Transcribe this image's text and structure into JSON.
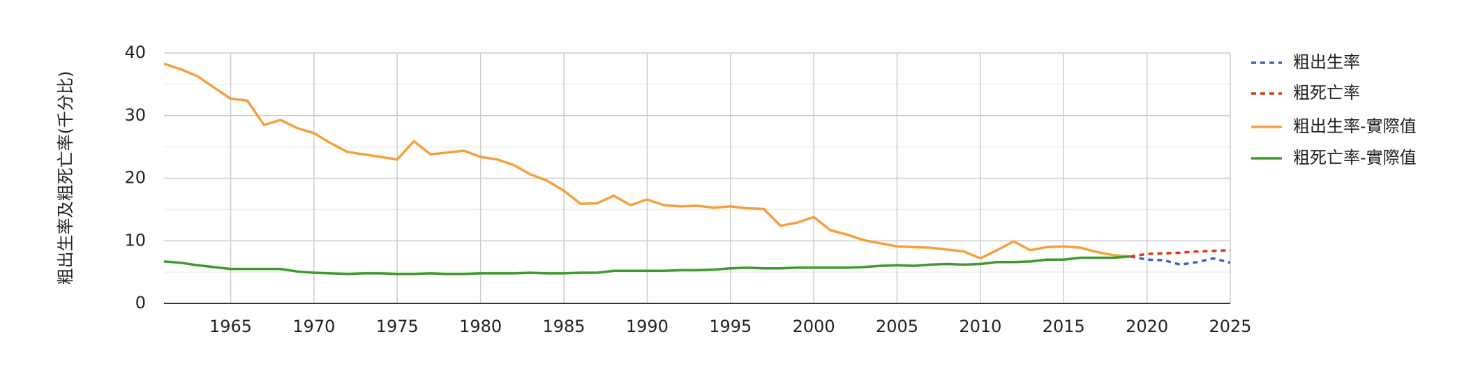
{
  "chart_data": {
    "type": "line",
    "y_label": "粗出生率及粗死亡率(千分比)",
    "xlim": [
      1961,
      2025
    ],
    "xticks": [
      1965,
      1970,
      1975,
      1980,
      1985,
      1990,
      1995,
      2000,
      2005,
      2010,
      2015,
      2020,
      2025
    ],
    "ylim": [
      0,
      40
    ],
    "yticks": [
      0,
      10,
      20,
      30,
      40
    ],
    "y_minor_ticks": [
      5,
      15,
      25,
      35
    ],
    "grid": true,
    "legend": "right",
    "series": [
      {
        "name": "粗出生率",
        "color": "#3366cc",
        "dashed": true,
        "x": [
          2019,
          2020,
          2021,
          2022,
          2023,
          2024,
          2025
        ],
        "values": [
          7.5,
          7.0,
          6.9,
          6.2,
          6.6,
          7.2,
          6.5
        ]
      },
      {
        "name": "粗死亡率",
        "color": "#dc3912",
        "dashed": true,
        "x": [
          2019,
          2020,
          2021,
          2022,
          2023,
          2024,
          2025
        ],
        "values": [
          7.5,
          7.9,
          8.0,
          8.1,
          8.3,
          8.4,
          8.5
        ]
      },
      {
        "name": "粗出生率-實際值",
        "color": "#f5a03c",
        "dashed": false,
        "x": [
          1961,
          1962,
          1963,
          1964,
          1965,
          1966,
          1967,
          1968,
          1969,
          1970,
          1971,
          1972,
          1973,
          1974,
          1975,
          1976,
          1977,
          1978,
          1979,
          1980,
          1981,
          1982,
          1983,
          1984,
          1985,
          1986,
          1987,
          1988,
          1989,
          1990,
          1991,
          1992,
          1993,
          1994,
          1995,
          1996,
          1997,
          1998,
          1999,
          2000,
          2001,
          2002,
          2003,
          2004,
          2005,
          2006,
          2007,
          2008,
          2009,
          2010,
          2011,
          2012,
          2013,
          2014,
          2015,
          2016,
          2017,
          2018,
          2019
        ],
        "values": [
          38.3,
          37.4,
          36.3,
          34.5,
          32.7,
          32.4,
          28.5,
          29.3,
          28.0,
          27.2,
          25.6,
          24.2,
          23.8,
          23.4,
          23.0,
          25.9,
          23.8,
          24.1,
          24.4,
          23.4,
          23.0,
          22.1,
          20.6,
          19.6,
          18.0,
          15.9,
          16.0,
          17.2,
          15.7,
          16.6,
          15.7,
          15.5,
          15.6,
          15.3,
          15.5,
          15.2,
          15.1,
          12.4,
          12.9,
          13.8,
          11.7,
          11.0,
          10.1,
          9.6,
          9.1,
          9.0,
          8.9,
          8.6,
          8.3,
          7.2,
          8.5,
          9.9,
          8.5,
          9.0,
          9.1,
          8.9,
          8.2,
          7.7,
          7.5
        ]
      },
      {
        "name": "粗死亡率-實際值",
        "color": "#3d9a2d",
        "dashed": false,
        "x": [
          1961,
          1962,
          1963,
          1964,
          1965,
          1966,
          1967,
          1968,
          1969,
          1970,
          1971,
          1972,
          1973,
          1974,
          1975,
          1976,
          1977,
          1978,
          1979,
          1980,
          1981,
          1982,
          1983,
          1984,
          1985,
          1986,
          1987,
          1988,
          1989,
          1990,
          1991,
          1992,
          1993,
          1994,
          1995,
          1996,
          1997,
          1998,
          1999,
          2000,
          2001,
          2002,
          2003,
          2004,
          2005,
          2006,
          2007,
          2008,
          2009,
          2010,
          2011,
          2012,
          2013,
          2014,
          2015,
          2016,
          2017,
          2018,
          2019
        ],
        "values": [
          6.7,
          6.5,
          6.1,
          5.8,
          5.5,
          5.5,
          5.5,
          5.5,
          5.1,
          4.9,
          4.8,
          4.7,
          4.8,
          4.8,
          4.7,
          4.7,
          4.8,
          4.7,
          4.7,
          4.8,
          4.8,
          4.8,
          4.9,
          4.8,
          4.8,
          4.9,
          4.9,
          5.2,
          5.2,
          5.2,
          5.2,
          5.3,
          5.3,
          5.4,
          5.6,
          5.7,
          5.6,
          5.6,
          5.7,
          5.7,
          5.7,
          5.7,
          5.8,
          6.0,
          6.1,
          6.0,
          6.2,
          6.3,
          6.2,
          6.3,
          6.6,
          6.6,
          6.7,
          7.0,
          7.0,
          7.3,
          7.3,
          7.3,
          7.5
        ]
      }
    ]
  }
}
